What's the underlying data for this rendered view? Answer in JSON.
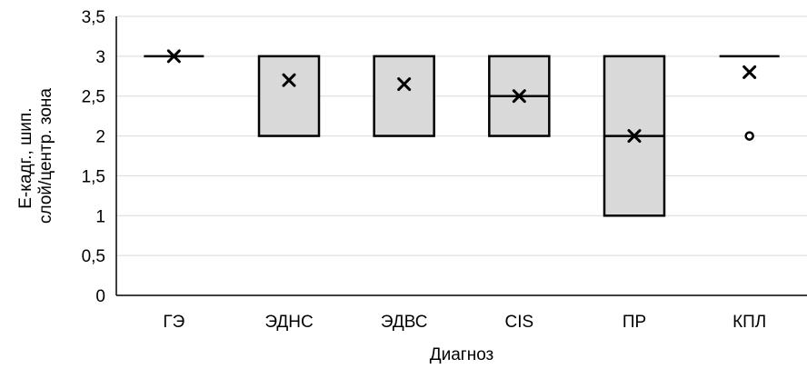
{
  "chart_data": {
    "type": "box",
    "title": "",
    "xlabel": "Диагноз",
    "ylabel_lines": [
      "Е-кадг., шип.",
      "слой/центр. зона"
    ],
    "ylim": [
      0,
      3.5
    ],
    "y_ticks": [
      0,
      0.5,
      1,
      1.5,
      2,
      2.5,
      3,
      3.5
    ],
    "y_tick_labels": [
      "0",
      "0,5",
      "1",
      "1,5",
      "2",
      "2,5",
      "3",
      "3,5"
    ],
    "grid": true,
    "categories": [
      "ГЭ",
      "ЭДНС",
      "ЭДВС",
      "CIS",
      "ПР",
      "КПЛ"
    ],
    "boxes": [
      {
        "category": "ГЭ",
        "q1": 3,
        "median": 3,
        "q3": 3,
        "mean": 3.0,
        "outliers": []
      },
      {
        "category": "ЭДНС",
        "q1": 2,
        "median": 3,
        "q3": 3,
        "mean": 2.7,
        "outliers": []
      },
      {
        "category": "ЭДВС",
        "q1": 2,
        "median": 3,
        "q3": 3,
        "mean": 2.65,
        "outliers": []
      },
      {
        "category": "CIS",
        "q1": 2,
        "median": 2.5,
        "q3": 3,
        "mean": 2.5,
        "outliers": []
      },
      {
        "category": "ПР",
        "q1": 1,
        "median": 2,
        "q3": 3,
        "mean": 2.0,
        "outliers": []
      },
      {
        "category": "КПЛ",
        "q1": 3,
        "median": 3,
        "q3": 3,
        "mean": 2.8,
        "outliers": [
          2
        ]
      }
    ],
    "colors": {
      "box_fill": "#d9d9d9",
      "box_stroke": "#000000",
      "grid": "#d9d9d9",
      "axis": "#000000"
    }
  }
}
